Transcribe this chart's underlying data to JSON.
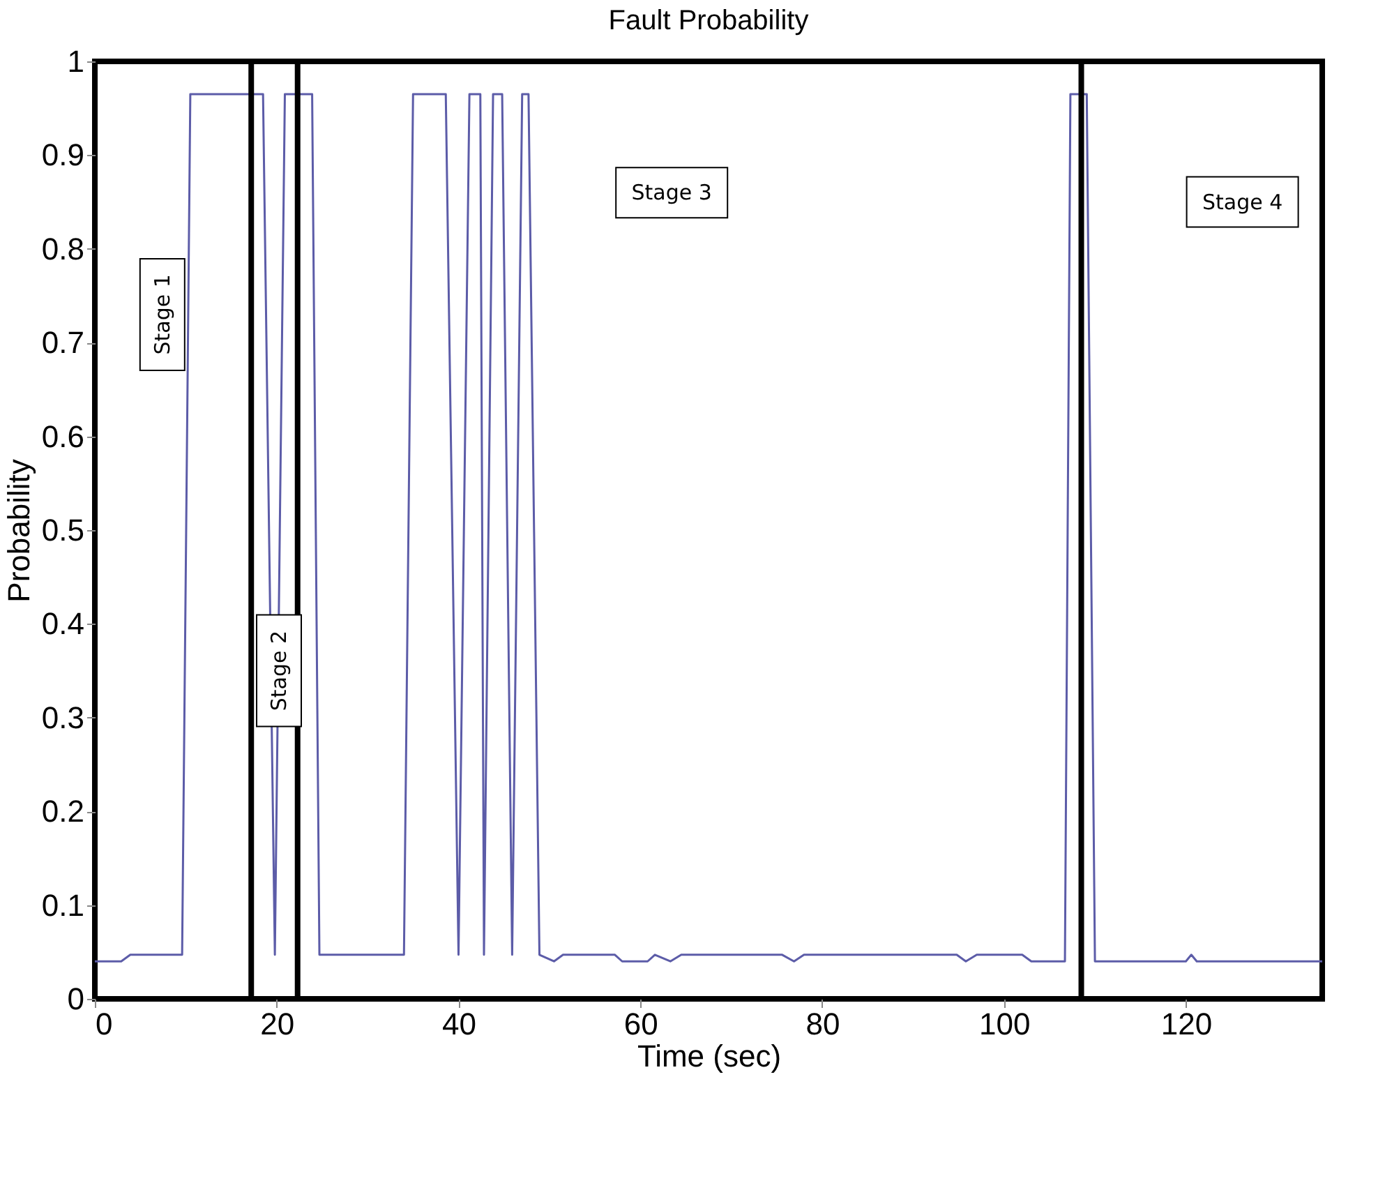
{
  "chart_data": {
    "type": "line",
    "title": "Fault Probability",
    "xlabel": "Time (sec)",
    "ylabel": "Probability",
    "x": [
      0,
      2.9,
      3.9,
      9.6,
      10.5,
      18.5,
      19.8,
      20.9,
      23.9,
      24.7,
      34,
      35,
      38.6,
      40,
      41.2,
      42.4,
      42.8,
      43.8,
      44.8,
      45.9,
      47,
      47.7,
      48.9,
      50.5,
      51.5,
      57.2,
      58,
      60.8,
      61.6,
      63.3,
      64.5,
      75.6,
      76.9,
      78,
      94.8,
      95.8,
      97,
      102,
      103,
      106.7,
      107.3,
      109.1,
      110,
      120,
      120.6,
      121.2,
      135
    ],
    "series": [
      {
        "color": "#5c5ca8",
        "values": [
          0.04,
          0.04,
          0.047,
          0.047,
          0.965,
          0.965,
          0.047,
          0.965,
          0.965,
          0.047,
          0.047,
          0.965,
          0.965,
          0.047,
          0.965,
          0.965,
          0.047,
          0.965,
          0.965,
          0.047,
          0.965,
          0.965,
          0.047,
          0.04,
          0.047,
          0.047,
          0.04,
          0.04,
          0.047,
          0.04,
          0.047,
          0.047,
          0.04,
          0.047,
          0.047,
          0.04,
          0.047,
          0.047,
          0.04,
          0.04,
          0.965,
          0.965,
          0.04,
          0.04,
          0.047,
          0.04,
          0.04
        ]
      }
    ],
    "xlim": [
      0,
      135
    ],
    "xticks": [
      0,
      20,
      40,
      60,
      80,
      100,
      120
    ],
    "ylim": [
      0,
      1
    ],
    "yticks": [
      0,
      0.1,
      0.2,
      0.3,
      0.4,
      0.5,
      0.6,
      0.7,
      0.8,
      0.9,
      1
    ],
    "grid": false,
    "line_style": "solid",
    "marker": "none",
    "ref_lines": [
      {
        "axis": "x",
        "value": 17.2,
        "color": "#000000"
      },
      {
        "axis": "x",
        "value": 22.3,
        "color": "#000000"
      },
      {
        "axis": "x",
        "value": 108.5,
        "color": "#000000"
      }
    ],
    "annotations": [
      "Stage 1",
      "Stage 2",
      "Stage 3",
      "Stage 4"
    ]
  }
}
